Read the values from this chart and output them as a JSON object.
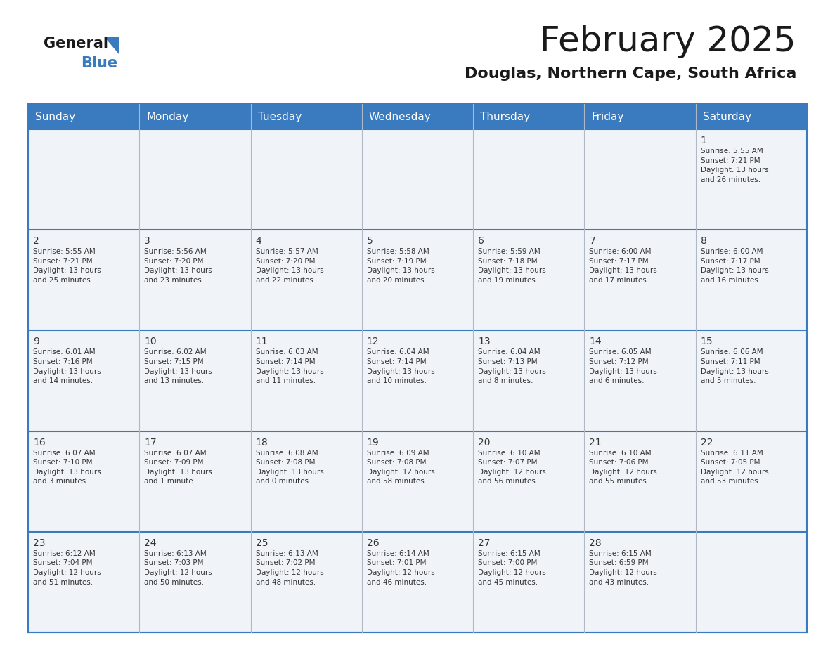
{
  "title": "February 2025",
  "subtitle": "Douglas, Northern Cape, South Africa",
  "header_color": "#3a7abf",
  "header_text_color": "#ffffff",
  "cell_bg_color": "#f0f4f8",
  "border_color": "#3a7abf",
  "grid_line_color": "#b0b8c8",
  "text_color": "#333333",
  "day_headers": [
    "Sunday",
    "Monday",
    "Tuesday",
    "Wednesday",
    "Thursday",
    "Friday",
    "Saturday"
  ],
  "weeks": [
    [
      {
        "day": "",
        "text": ""
      },
      {
        "day": "",
        "text": ""
      },
      {
        "day": "",
        "text": ""
      },
      {
        "day": "",
        "text": ""
      },
      {
        "day": "",
        "text": ""
      },
      {
        "day": "",
        "text": ""
      },
      {
        "day": "1",
        "text": "Sunrise: 5:55 AM\nSunset: 7:21 PM\nDaylight: 13 hours\nand 26 minutes."
      }
    ],
    [
      {
        "day": "2",
        "text": "Sunrise: 5:55 AM\nSunset: 7:21 PM\nDaylight: 13 hours\nand 25 minutes."
      },
      {
        "day": "3",
        "text": "Sunrise: 5:56 AM\nSunset: 7:20 PM\nDaylight: 13 hours\nand 23 minutes."
      },
      {
        "day": "4",
        "text": "Sunrise: 5:57 AM\nSunset: 7:20 PM\nDaylight: 13 hours\nand 22 minutes."
      },
      {
        "day": "5",
        "text": "Sunrise: 5:58 AM\nSunset: 7:19 PM\nDaylight: 13 hours\nand 20 minutes."
      },
      {
        "day": "6",
        "text": "Sunrise: 5:59 AM\nSunset: 7:18 PM\nDaylight: 13 hours\nand 19 minutes."
      },
      {
        "day": "7",
        "text": "Sunrise: 6:00 AM\nSunset: 7:17 PM\nDaylight: 13 hours\nand 17 minutes."
      },
      {
        "day": "8",
        "text": "Sunrise: 6:00 AM\nSunset: 7:17 PM\nDaylight: 13 hours\nand 16 minutes."
      }
    ],
    [
      {
        "day": "9",
        "text": "Sunrise: 6:01 AM\nSunset: 7:16 PM\nDaylight: 13 hours\nand 14 minutes."
      },
      {
        "day": "10",
        "text": "Sunrise: 6:02 AM\nSunset: 7:15 PM\nDaylight: 13 hours\nand 13 minutes."
      },
      {
        "day": "11",
        "text": "Sunrise: 6:03 AM\nSunset: 7:14 PM\nDaylight: 13 hours\nand 11 minutes."
      },
      {
        "day": "12",
        "text": "Sunrise: 6:04 AM\nSunset: 7:14 PM\nDaylight: 13 hours\nand 10 minutes."
      },
      {
        "day": "13",
        "text": "Sunrise: 6:04 AM\nSunset: 7:13 PM\nDaylight: 13 hours\nand 8 minutes."
      },
      {
        "day": "14",
        "text": "Sunrise: 6:05 AM\nSunset: 7:12 PM\nDaylight: 13 hours\nand 6 minutes."
      },
      {
        "day": "15",
        "text": "Sunrise: 6:06 AM\nSunset: 7:11 PM\nDaylight: 13 hours\nand 5 minutes."
      }
    ],
    [
      {
        "day": "16",
        "text": "Sunrise: 6:07 AM\nSunset: 7:10 PM\nDaylight: 13 hours\nand 3 minutes."
      },
      {
        "day": "17",
        "text": "Sunrise: 6:07 AM\nSunset: 7:09 PM\nDaylight: 13 hours\nand 1 minute."
      },
      {
        "day": "18",
        "text": "Sunrise: 6:08 AM\nSunset: 7:08 PM\nDaylight: 13 hours\nand 0 minutes."
      },
      {
        "day": "19",
        "text": "Sunrise: 6:09 AM\nSunset: 7:08 PM\nDaylight: 12 hours\nand 58 minutes."
      },
      {
        "day": "20",
        "text": "Sunrise: 6:10 AM\nSunset: 7:07 PM\nDaylight: 12 hours\nand 56 minutes."
      },
      {
        "day": "21",
        "text": "Sunrise: 6:10 AM\nSunset: 7:06 PM\nDaylight: 12 hours\nand 55 minutes."
      },
      {
        "day": "22",
        "text": "Sunrise: 6:11 AM\nSunset: 7:05 PM\nDaylight: 12 hours\nand 53 minutes."
      }
    ],
    [
      {
        "day": "23",
        "text": "Sunrise: 6:12 AM\nSunset: 7:04 PM\nDaylight: 12 hours\nand 51 minutes."
      },
      {
        "day": "24",
        "text": "Sunrise: 6:13 AM\nSunset: 7:03 PM\nDaylight: 12 hours\nand 50 minutes."
      },
      {
        "day": "25",
        "text": "Sunrise: 6:13 AM\nSunset: 7:02 PM\nDaylight: 12 hours\nand 48 minutes."
      },
      {
        "day": "26",
        "text": "Sunrise: 6:14 AM\nSunset: 7:01 PM\nDaylight: 12 hours\nand 46 minutes."
      },
      {
        "day": "27",
        "text": "Sunrise: 6:15 AM\nSunset: 7:00 PM\nDaylight: 12 hours\nand 45 minutes."
      },
      {
        "day": "28",
        "text": "Sunrise: 6:15 AM\nSunset: 6:59 PM\nDaylight: 12 hours\nand 43 minutes."
      },
      {
        "day": "",
        "text": ""
      }
    ]
  ],
  "logo_general_color": "#1a1a1a",
  "logo_blue_color": "#3a7abf",
  "logo_triangle_color": "#3a7abf",
  "title_fontsize": 36,
  "subtitle_fontsize": 16,
  "header_fontsize": 11,
  "day_num_fontsize": 10,
  "cell_text_fontsize": 7.5
}
